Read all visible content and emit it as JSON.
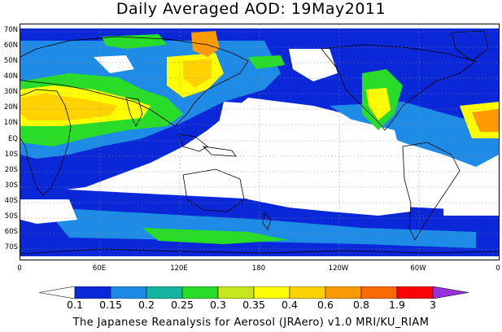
{
  "title": "Daily Averaged AOD: 19May2011",
  "footer": "The Japanese Reanalysis for Aerosol (JRAero) v1.0 MRI/KU_RIAM",
  "lat_labels": [
    "70N",
    "60N",
    "50N",
    "40N",
    "30N",
    "20N",
    "10N",
    "EQ",
    "10S",
    "20S",
    "30S",
    "40S",
    "50S",
    "60S",
    "70S"
  ],
  "lon_labels": [
    "0",
    "60E",
    "120E",
    "180",
    "120W",
    "60W",
    "0"
  ],
  "colorbar": {
    "labels": [
      "0.1",
      "0.15",
      "0.2",
      "0.25",
      "0.3",
      "0.35",
      "0.4",
      "0.6",
      "0.8",
      "1.9",
      "3"
    ],
    "colors": [
      "#ffffff",
      "#0a28d8",
      "#1e8ce6",
      "#14b4a0",
      "#28dc28",
      "#c8e61e",
      "#ffff00",
      "#ffd200",
      "#ff9a00",
      "#ff6a00",
      "#ff0000",
      "#9a32dc"
    ]
  }
}
